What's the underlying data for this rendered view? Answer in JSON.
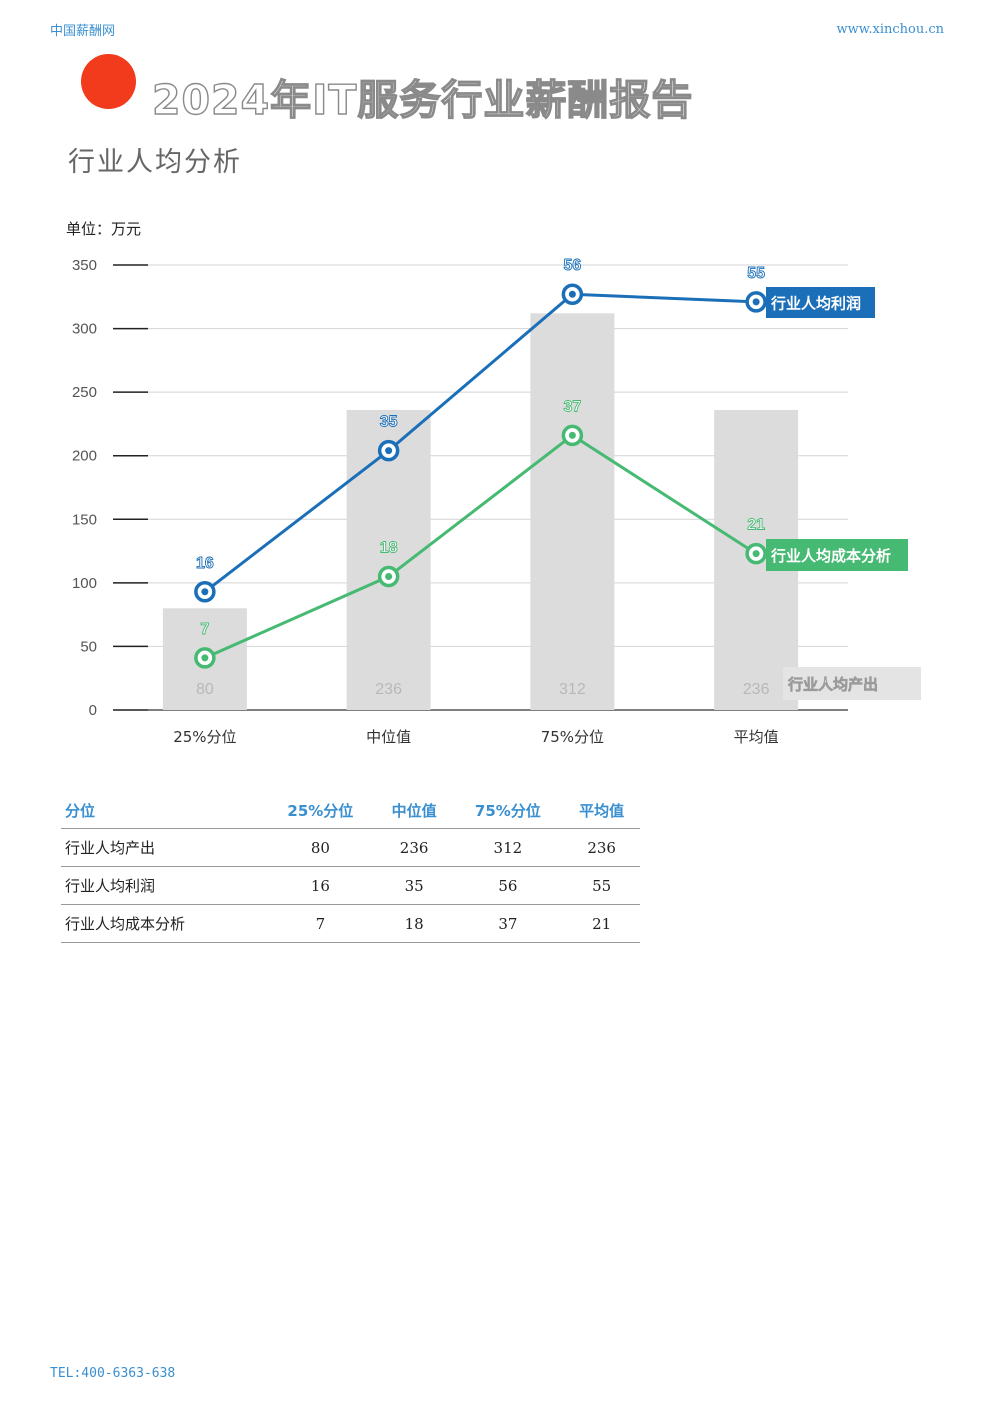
{
  "header": {
    "site_name": "中国薪酬网",
    "site_url": "www.xinchou.cn"
  },
  "title": "2024年IT服务行业薪酬报告",
  "subtitle": "行业人均分析",
  "unit_label": "单位：万元",
  "colors": {
    "accent_dot": "#f23a1c",
    "profit": "#1a6fb8",
    "cost": "#46b972",
    "output_bar": "#dcdcdc",
    "table_header": "#3a8fd0"
  },
  "chart_data": {
    "type": "bar",
    "categories": [
      "25%分位",
      "中位值",
      "75%分位",
      "平均值"
    ],
    "ylim": [
      0,
      350
    ],
    "yticks": [
      0,
      50,
      100,
      150,
      200,
      250,
      300,
      350
    ],
    "grid": true,
    "series": [
      {
        "name": "行业人均产出",
        "type": "bar",
        "values": [
          80,
          236,
          312,
          236
        ]
      },
      {
        "name": "行业人均利润",
        "type": "line",
        "values": [
          16,
          35,
          56,
          55
        ],
        "plotted": [
          93,
          204,
          327,
          321
        ]
      },
      {
        "name": "行业人均成本分析",
        "type": "line",
        "values": [
          7,
          18,
          37,
          21
        ],
        "plotted": [
          41,
          105,
          216,
          123
        ]
      }
    ]
  },
  "table": {
    "headers": [
      "分位",
      "25%分位",
      "中位值",
      "75%分位",
      "平均值"
    ],
    "rows": [
      [
        "行业人均产出",
        "80",
        "236",
        "312",
        "236"
      ],
      [
        "行业人均利润",
        "16",
        "35",
        "56",
        "55"
      ],
      [
        "行业人均成本分析",
        "7",
        "18",
        "37",
        "21"
      ]
    ]
  },
  "footer": {
    "tel": "TEL:400-6363-638"
  }
}
